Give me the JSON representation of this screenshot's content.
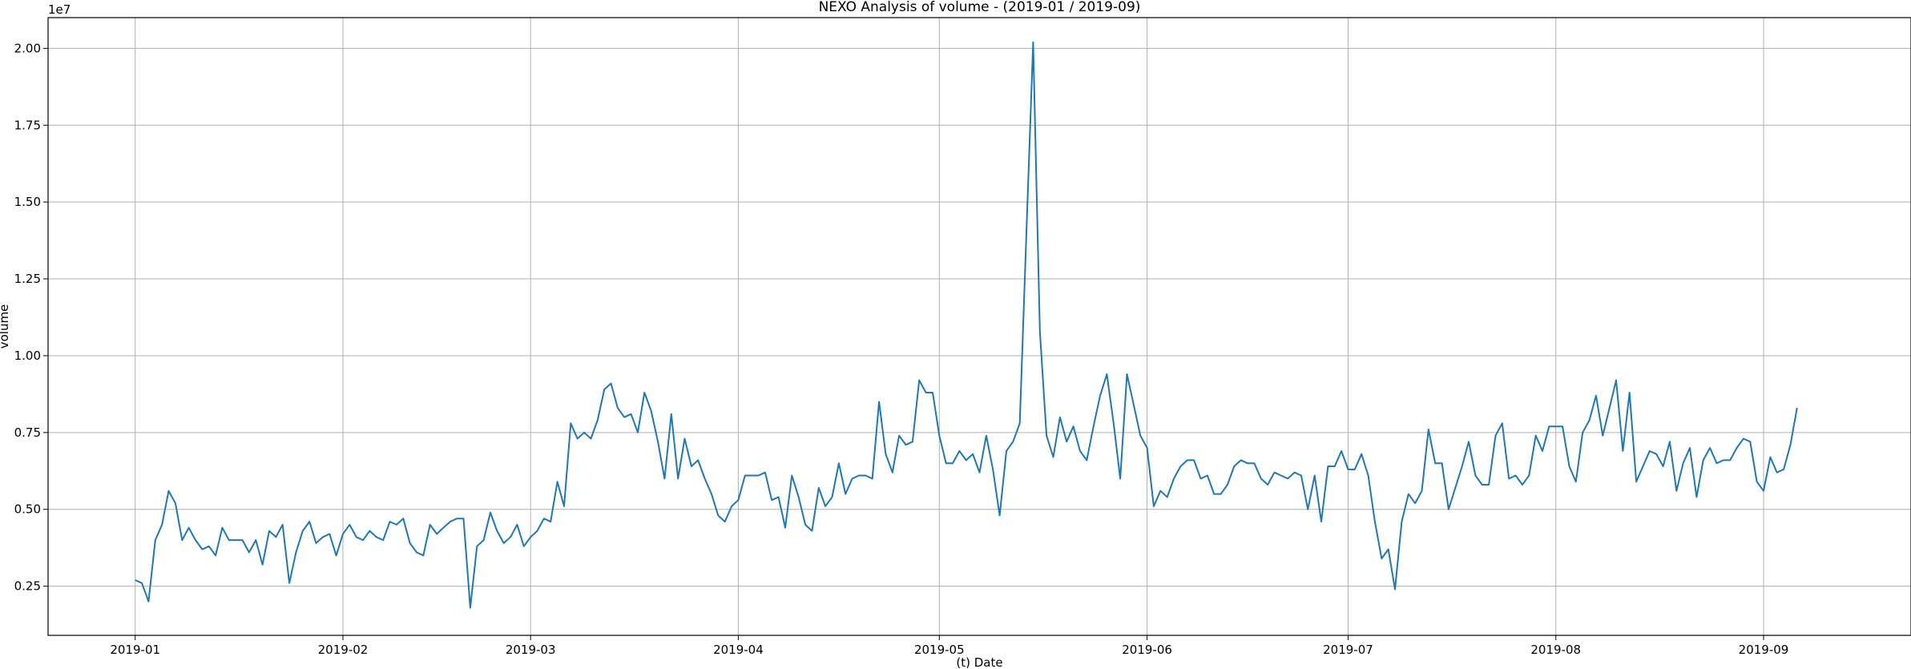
{
  "chart_data": {
    "type": "line",
    "title": "NEXO Analysis of volume - (2019-01 / 2019-09)",
    "xlabel": "(t) Date",
    "ylabel": "volume",
    "y_multiplier_label": "1e7",
    "grid": true,
    "xlim": [
      "2018-12-19",
      "2019-09-23"
    ],
    "ylim": [
      0.09,
      2.1
    ],
    "x_ticks": [
      {
        "value": "2019-01-01",
        "label": "2019-01"
      },
      {
        "value": "2019-02-01",
        "label": "2019-02"
      },
      {
        "value": "2019-03-01",
        "label": "2019-03"
      },
      {
        "value": "2019-04-01",
        "label": "2019-04"
      },
      {
        "value": "2019-05-01",
        "label": "2019-05"
      },
      {
        "value": "2019-06-01",
        "label": "2019-06"
      },
      {
        "value": "2019-07-01",
        "label": "2019-07"
      },
      {
        "value": "2019-08-01",
        "label": "2019-08"
      },
      {
        "value": "2019-09-01",
        "label": "2019-09"
      }
    ],
    "y_ticks": [
      {
        "value": 0.25,
        "label": "0.25"
      },
      {
        "value": 0.5,
        "label": "0.50"
      },
      {
        "value": 0.75,
        "label": "0.75"
      },
      {
        "value": 1.0,
        "label": "1.00"
      },
      {
        "value": 1.25,
        "label": "1.25"
      },
      {
        "value": 1.5,
        "label": "1.50"
      },
      {
        "value": 1.75,
        "label": "1.75"
      },
      {
        "value": 2.0,
        "label": "2.00"
      }
    ],
    "series": [
      {
        "color": "#1f77b4",
        "x": [
          "2019-01-01",
          "2019-01-02",
          "2019-01-03",
          "2019-01-04",
          "2019-01-05",
          "2019-01-06",
          "2019-01-07",
          "2019-01-08",
          "2019-01-09",
          "2019-01-10",
          "2019-01-11",
          "2019-01-12",
          "2019-01-13",
          "2019-01-14",
          "2019-01-15",
          "2019-01-16",
          "2019-01-17",
          "2019-01-18",
          "2019-01-19",
          "2019-01-20",
          "2019-01-21",
          "2019-01-22",
          "2019-01-23",
          "2019-01-24",
          "2019-01-25",
          "2019-01-26",
          "2019-01-27",
          "2019-01-28",
          "2019-01-29",
          "2019-01-30",
          "2019-01-31",
          "2019-02-01",
          "2019-02-02",
          "2019-02-03",
          "2019-02-04",
          "2019-02-05",
          "2019-02-06",
          "2019-02-07",
          "2019-02-08",
          "2019-02-09",
          "2019-02-10",
          "2019-02-11",
          "2019-02-12",
          "2019-02-13",
          "2019-02-14",
          "2019-02-15",
          "2019-02-16",
          "2019-02-17",
          "2019-02-18",
          "2019-02-19",
          "2019-02-20",
          "2019-02-21",
          "2019-02-22",
          "2019-02-23",
          "2019-02-24",
          "2019-02-25",
          "2019-02-26",
          "2019-02-27",
          "2019-02-28",
          "2019-03-01",
          "2019-03-02",
          "2019-03-03",
          "2019-03-04",
          "2019-03-05",
          "2019-03-06",
          "2019-03-07",
          "2019-03-08",
          "2019-03-09",
          "2019-03-10",
          "2019-03-11",
          "2019-03-12",
          "2019-03-13",
          "2019-03-14",
          "2019-03-15",
          "2019-03-16",
          "2019-03-17",
          "2019-03-18",
          "2019-03-19",
          "2019-03-20",
          "2019-03-21",
          "2019-03-22",
          "2019-03-23",
          "2019-03-24",
          "2019-03-25",
          "2019-03-26",
          "2019-03-27",
          "2019-03-28",
          "2019-03-29",
          "2019-03-30",
          "2019-03-31",
          "2019-04-01",
          "2019-04-02",
          "2019-04-03",
          "2019-04-04",
          "2019-04-05",
          "2019-04-06",
          "2019-04-07",
          "2019-04-08",
          "2019-04-09",
          "2019-04-10",
          "2019-04-11",
          "2019-04-12",
          "2019-04-13",
          "2019-04-14",
          "2019-04-15",
          "2019-04-16",
          "2019-04-17",
          "2019-04-18",
          "2019-04-19",
          "2019-04-20",
          "2019-04-21",
          "2019-04-22",
          "2019-04-23",
          "2019-04-24",
          "2019-04-25",
          "2019-04-26",
          "2019-04-27",
          "2019-04-28",
          "2019-04-29",
          "2019-04-30",
          "2019-05-01",
          "2019-05-02",
          "2019-05-03",
          "2019-05-04",
          "2019-05-05",
          "2019-05-06",
          "2019-05-07",
          "2019-05-08",
          "2019-05-09",
          "2019-05-10",
          "2019-05-11",
          "2019-05-12",
          "2019-05-13",
          "2019-05-14",
          "2019-05-15",
          "2019-05-16",
          "2019-05-17",
          "2019-05-18",
          "2019-05-19",
          "2019-05-20",
          "2019-05-21",
          "2019-05-22",
          "2019-05-23",
          "2019-05-24",
          "2019-05-25",
          "2019-05-26",
          "2019-05-27",
          "2019-05-28",
          "2019-05-29",
          "2019-05-30",
          "2019-05-31",
          "2019-06-01",
          "2019-06-02",
          "2019-06-03",
          "2019-06-04",
          "2019-06-05",
          "2019-06-06",
          "2019-06-07",
          "2019-06-08",
          "2019-06-09",
          "2019-06-10",
          "2019-06-11",
          "2019-06-12",
          "2019-06-13",
          "2019-06-14",
          "2019-06-15",
          "2019-06-16",
          "2019-06-17",
          "2019-06-18",
          "2019-06-19",
          "2019-06-20",
          "2019-06-21",
          "2019-06-22",
          "2019-06-23",
          "2019-06-24",
          "2019-06-25",
          "2019-06-26",
          "2019-06-27",
          "2019-06-28",
          "2019-06-29",
          "2019-06-30",
          "2019-07-01",
          "2019-07-02",
          "2019-07-03",
          "2019-07-04",
          "2019-07-05",
          "2019-07-06",
          "2019-07-07",
          "2019-07-08",
          "2019-07-09",
          "2019-07-10",
          "2019-07-11",
          "2019-07-12",
          "2019-07-13",
          "2019-07-14",
          "2019-07-15",
          "2019-07-16",
          "2019-07-17",
          "2019-07-18",
          "2019-07-19",
          "2019-07-20",
          "2019-07-21",
          "2019-07-22",
          "2019-07-23",
          "2019-07-24",
          "2019-07-25",
          "2019-07-26",
          "2019-07-27",
          "2019-07-28",
          "2019-07-29",
          "2019-07-30",
          "2019-07-31",
          "2019-08-01",
          "2019-08-02",
          "2019-08-03",
          "2019-08-04",
          "2019-08-05",
          "2019-08-06",
          "2019-08-07",
          "2019-08-08",
          "2019-08-09",
          "2019-08-10",
          "2019-08-11",
          "2019-08-12",
          "2019-08-13",
          "2019-08-14",
          "2019-08-15",
          "2019-08-16",
          "2019-08-17",
          "2019-08-18",
          "2019-08-19",
          "2019-08-20",
          "2019-08-21",
          "2019-08-22",
          "2019-08-23",
          "2019-08-24",
          "2019-08-25",
          "2019-08-26",
          "2019-08-27",
          "2019-08-28",
          "2019-08-29",
          "2019-08-30",
          "2019-08-31",
          "2019-09-01",
          "2019-09-02",
          "2019-09-03",
          "2019-09-04",
          "2019-09-05",
          "2019-09-06"
        ],
        "y": [
          0.27,
          0.26,
          0.2,
          0.4,
          0.45,
          0.56,
          0.52,
          0.4,
          0.44,
          0.4,
          0.37,
          0.38,
          0.35,
          0.44,
          0.4,
          0.4,
          0.4,
          0.36,
          0.4,
          0.32,
          0.43,
          0.41,
          0.45,
          0.26,
          0.36,
          0.43,
          0.46,
          0.39,
          0.41,
          0.42,
          0.35,
          0.42,
          0.45,
          0.41,
          0.4,
          0.43,
          0.41,
          0.4,
          0.46,
          0.45,
          0.47,
          0.39,
          0.36,
          0.35,
          0.45,
          0.42,
          0.44,
          0.46,
          0.47,
          0.47,
          0.18,
          0.38,
          0.4,
          0.49,
          0.43,
          0.39,
          0.41,
          0.45,
          0.38,
          0.41,
          0.43,
          0.47,
          0.46,
          0.59,
          0.51,
          0.78,
          0.73,
          0.75,
          0.73,
          0.79,
          0.89,
          0.91,
          0.83,
          0.8,
          0.81,
          0.75,
          0.88,
          0.82,
          0.72,
          0.6,
          0.81,
          0.6,
          0.73,
          0.64,
          0.66,
          0.6,
          0.55,
          0.48,
          0.46,
          0.51,
          0.53,
          0.61,
          0.61,
          0.61,
          0.62,
          0.53,
          0.54,
          0.44,
          0.61,
          0.54,
          0.45,
          0.43,
          0.57,
          0.51,
          0.54,
          0.65,
          0.55,
          0.6,
          0.61,
          0.61,
          0.6,
          0.85,
          0.68,
          0.62,
          0.74,
          0.71,
          0.72,
          0.92,
          0.88,
          0.88,
          0.74,
          0.65,
          0.65,
          0.69,
          0.66,
          0.68,
          0.62,
          0.74,
          0.63,
          0.48,
          0.69,
          0.72,
          0.78,
          1.4,
          2.02,
          1.08,
          0.74,
          0.67,
          0.8,
          0.72,
          0.77,
          0.69,
          0.66,
          0.77,
          0.87,
          0.94,
          0.78,
          0.6,
          0.94,
          0.84,
          0.74,
          0.7,
          0.51,
          0.56,
          0.54,
          0.6,
          0.64,
          0.66,
          0.66,
          0.6,
          0.61,
          0.55,
          0.55,
          0.58,
          0.64,
          0.66,
          0.65,
          0.65,
          0.6,
          0.58,
          0.62,
          0.61,
          0.6,
          0.62,
          0.61,
          0.5,
          0.61,
          0.46,
          0.64,
          0.64,
          0.69,
          0.63,
          0.63,
          0.68,
          0.61,
          0.46,
          0.34,
          0.37,
          0.24,
          0.46,
          0.55,
          0.52,
          0.56,
          0.76,
          0.65,
          0.65,
          0.5,
          0.57,
          0.64,
          0.72,
          0.61,
          0.58,
          0.58,
          0.74,
          0.78,
          0.6,
          0.61,
          0.58,
          0.61,
          0.74,
          0.69,
          0.77,
          0.77,
          0.77,
          0.64,
          0.59,
          0.75,
          0.79,
          0.87,
          0.74,
          0.83,
          0.92,
          0.69,
          0.88,
          0.59,
          0.64,
          0.69,
          0.68,
          0.64,
          0.72,
          0.56,
          0.65,
          0.7,
          0.54,
          0.66,
          0.7,
          0.65,
          0.66,
          0.66,
          0.7,
          0.73,
          0.72,
          0.59,
          0.56,
          0.67,
          0.62,
          0.63,
          0.71,
          0.83
        ]
      }
    ]
  }
}
